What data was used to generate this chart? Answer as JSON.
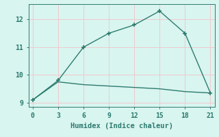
{
  "x": [
    0,
    3,
    6,
    9,
    12,
    15,
    18,
    21
  ],
  "line1_y": [
    9.1,
    9.8,
    11.0,
    11.5,
    11.8,
    12.3,
    11.5,
    9.35
  ],
  "line2_y": [
    9.1,
    9.75,
    9.65,
    9.6,
    9.55,
    9.5,
    9.4,
    9.35
  ],
  "line_color": "#2d7a6e",
  "bg_color": "#d8f5f0",
  "grid_color": "#f0c8cc",
  "xlabel": "Humidex (Indice chaleur)",
  "xlim": [
    -0.5,
    21.5
  ],
  "ylim": [
    8.85,
    12.55
  ],
  "xticks": [
    0,
    3,
    6,
    9,
    12,
    15,
    18,
    21
  ],
  "yticks": [
    9,
    10,
    11,
    12
  ],
  "marker": "+",
  "marker_size": 5,
  "marker_lw": 1.2,
  "linewidth": 1.0,
  "xlabel_fontsize": 7.5,
  "tick_fontsize": 7
}
